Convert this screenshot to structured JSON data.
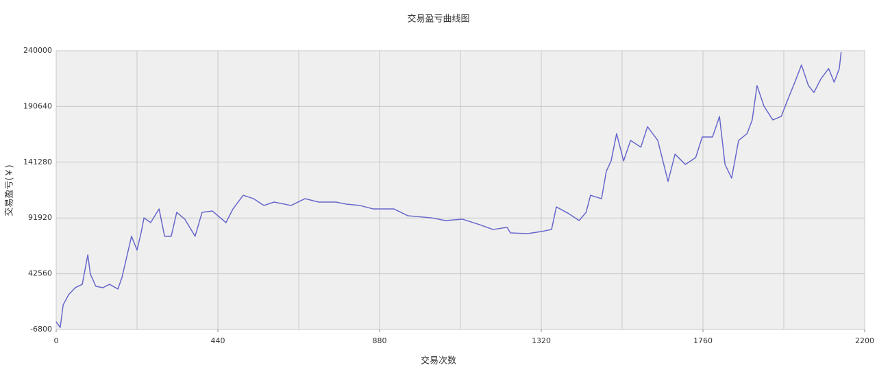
{
  "chart_data": {
    "type": "line",
    "title": "交易盈亏曲线图",
    "x_label": "交易次数",
    "y_label": "交易盈亏(￥)",
    "color": "#6666cc",
    "grid": true,
    "xlim": [
      0,
      2200
    ],
    "xticks": [
      0,
      440,
      880,
      1320,
      1760,
      2200
    ],
    "xminor_grid": [
      220,
      660,
      1100,
      1540,
      1980
    ],
    "ylim": [
      -6800,
      240000
    ],
    "yticks": [
      -6800,
      42560,
      91920,
      141280,
      190640,
      240000
    ],
    "x": [
      0,
      11,
      19,
      34,
      52,
      71,
      86,
      93,
      108,
      127,
      145,
      168,
      179,
      192,
      205,
      220,
      231,
      239,
      257,
      280,
      295,
      313,
      328,
      350,
      378,
      397,
      425,
      462,
      481,
      509,
      537,
      565,
      593,
      639,
      677,
      714,
      761,
      789,
      826,
      863,
      919,
      957,
      1022,
      1059,
      1106,
      1152,
      1189,
      1227,
      1236,
      1283,
      1320,
      1348,
      1361,
      1395,
      1423,
      1442,
      1454,
      1484,
      1497,
      1510,
      1525,
      1544,
      1563,
      1591,
      1609,
      1637,
      1665,
      1684,
      1712,
      1740,
      1758,
      1786,
      1805,
      1820,
      1838,
      1857,
      1880,
      1894,
      1907,
      1926,
      1950,
      1973,
      1991,
      2010,
      2028,
      2047,
      2062,
      2081,
      2102,
      2117,
      2131,
      2136
    ],
    "values": [
      0,
      -5000,
      15000,
      24100,
      30200,
      33200,
      59300,
      42300,
      31400,
      30200,
      33200,
      29000,
      39300,
      57500,
      75700,
      63500,
      78700,
      92000,
      87800,
      99900,
      75700,
      75700,
      96900,
      90800,
      75700,
      96900,
      98100,
      87800,
      99900,
      112000,
      109000,
      103000,
      106000,
      103000,
      109000,
      106000,
      106000,
      104200,
      103000,
      99900,
      99900,
      93900,
      92000,
      89600,
      90800,
      86000,
      81700,
      83600,
      78700,
      78100,
      79900,
      81700,
      101700,
      95700,
      89600,
      96900,
      112000,
      109000,
      133300,
      142400,
      166600,
      142400,
      160600,
      154600,
      172700,
      160600,
      124200,
      148400,
      139300,
      145300,
      163600,
      163600,
      181800,
      139300,
      127200,
      160600,
      166600,
      178700,
      209100,
      190900,
      178700,
      181800,
      196900,
      212100,
      227300,
      209100,
      203000,
      215100,
      224200,
      212100,
      224200,
      238800
    ]
  }
}
